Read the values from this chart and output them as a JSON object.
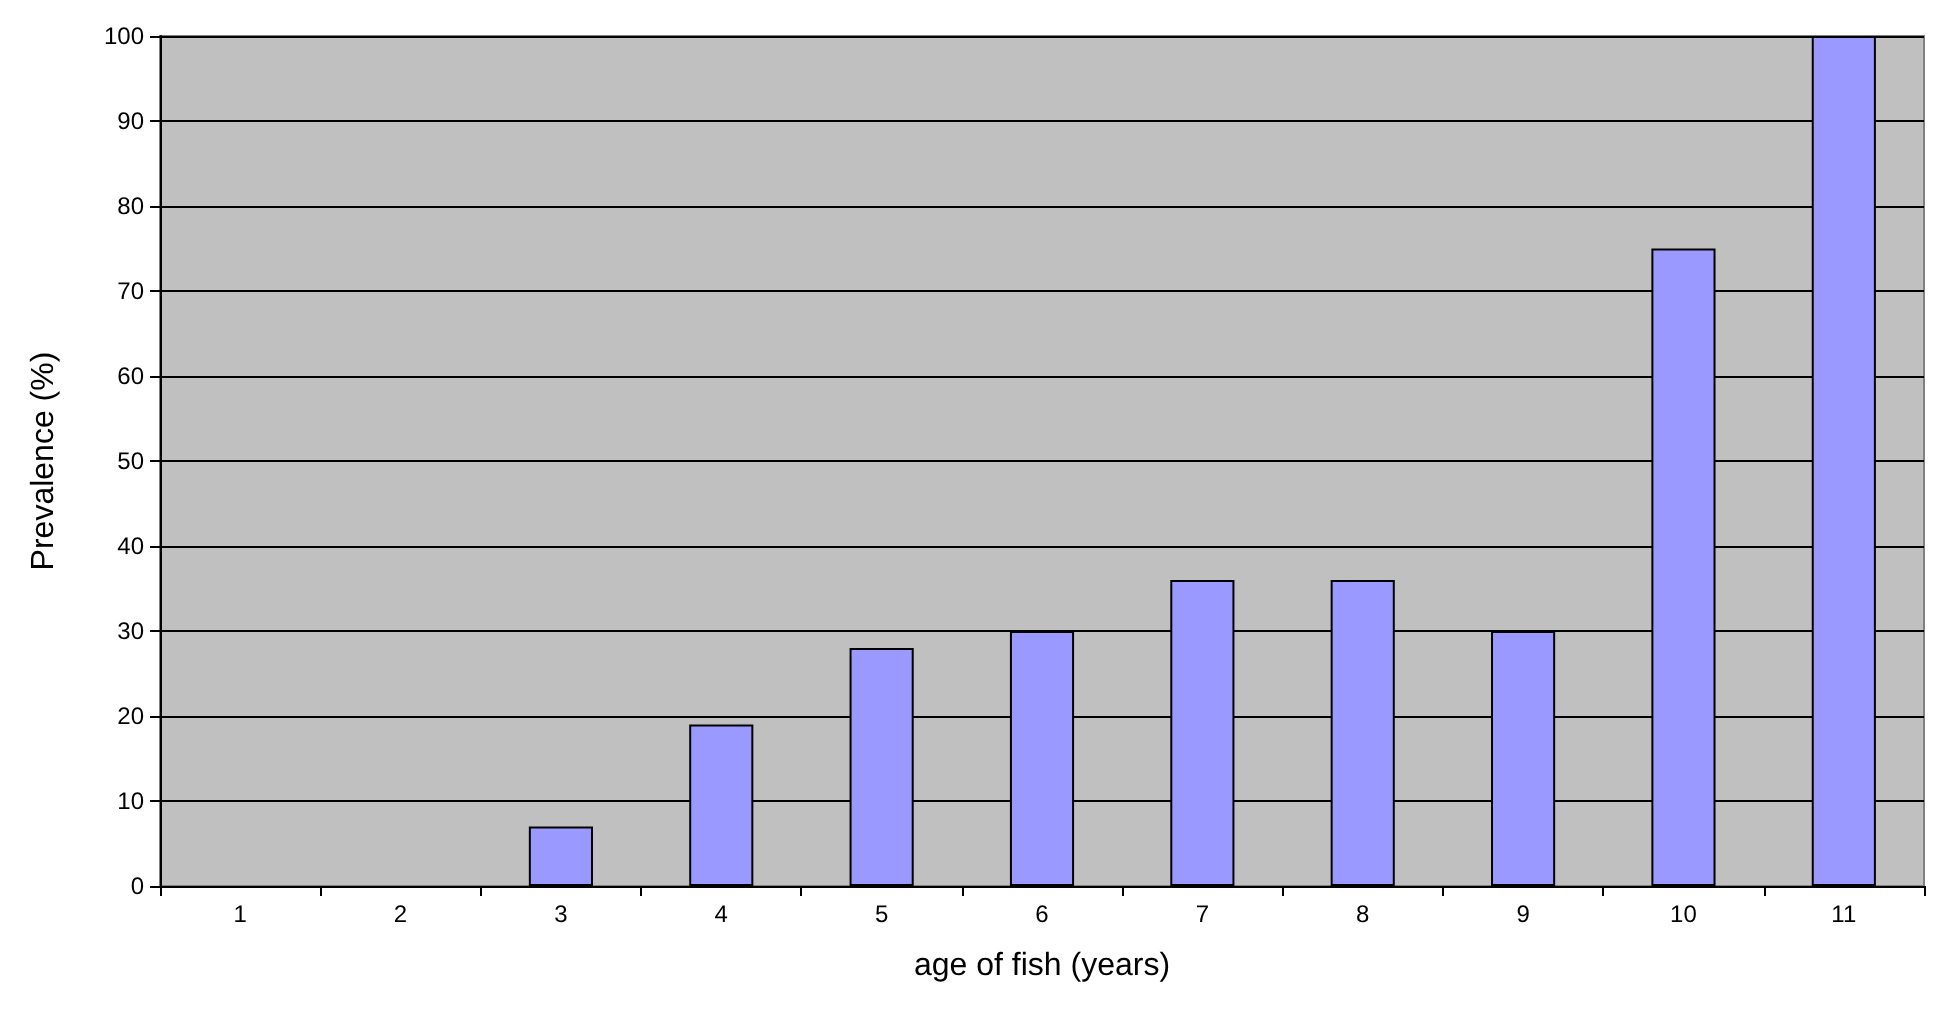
{
  "chart_data": {
    "type": "bar",
    "xlabel": "age of fish (years)",
    "ylabel": "Prevalence (%)",
    "categories": [
      "1",
      "2",
      "3",
      "4",
      "5",
      "6",
      "7",
      "8",
      "9",
      "10",
      "11"
    ],
    "values": [
      0,
      0,
      7,
      19,
      28,
      30,
      36,
      36,
      30,
      75,
      100
    ],
    "color": "#9999ff",
    "ylim": [
      0,
      100
    ],
    "yticks": [
      0,
      10,
      20,
      30,
      40,
      50,
      60,
      70,
      80,
      90,
      100
    ],
    "grid": true
  }
}
